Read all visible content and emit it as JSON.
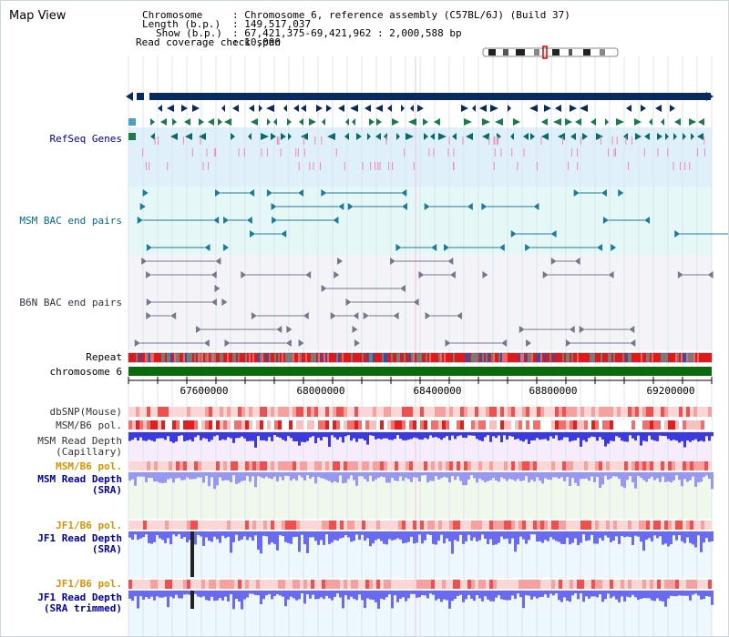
{
  "title": "Map View",
  "header": {
    "chromosome_label": "Chromosome",
    "chromosome_value": ": Chromosome 6, reference assembly (C57BL/6J) (Build 37)",
    "length_label": "Length (b.p.)",
    "length_value": ": 149,517,037",
    "show_label": "Show (b.p.)",
    "show_value": ": 67,421,375-69,421,962 : 2,000,588 bp",
    "coverage_label": "Read coverage check span",
    "coverage_value": ": 10,000"
  },
  "tracks": {
    "refseq": "RefSeq Genes",
    "msm_bac": "MSM BAC end pairs",
    "b6n_bac": "B6N BAC end pairs",
    "repeat": "Repeat",
    "chromosome": "chromosome 6",
    "dbsnp": "dbSNP(Mouse)",
    "msm_b6_pol_1": "MSM/B6 pol.",
    "msm_read_depth_cap_1": "MSM Read Depth",
    "msm_read_depth_cap_2": "(Capillary)",
    "msm_b6_pol_2": "MSM/B6 pol.",
    "msm_read_depth_sra_1": "MSM Read Depth",
    "msm_read_depth_sra_2": "(SRA)",
    "jf1_b6_pol_1": "JF1/B6 pol.",
    "jf1_read_depth_sra_1": "JF1 Read Depth",
    "jf1_read_depth_sra_2": "(SRA)",
    "jf1_b6_pol_2": "JF1/B6 pol.",
    "jf1_read_depth_trim_1": "JF1 Read Depth",
    "jf1_read_depth_trim_2": "(SRA trimmed)"
  },
  "axis": {
    "ticks": [
      "67600000",
      "68000000",
      "68400000",
      "68800000",
      "69200000"
    ]
  },
  "colors": {
    "navy": "#0a2a5e",
    "refseq_bg": "#dff0fa",
    "msm_bg": "#e6f7f7",
    "b6n_bg": "#f3f3f8",
    "chromosome_green": "#0b6b0b",
    "repeat_red": "#e0181a",
    "depth_blue": "#6464f0",
    "label_blue": "#0000aa",
    "label_orange": "#dd9000",
    "label_teal": "#006a8a"
  }
}
